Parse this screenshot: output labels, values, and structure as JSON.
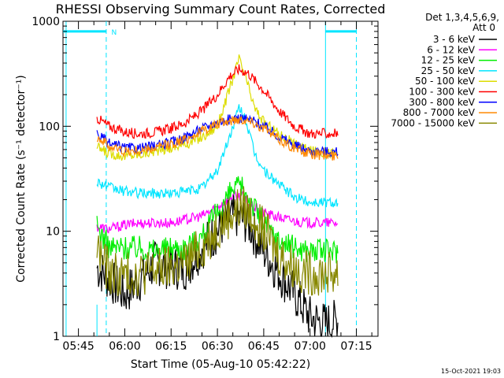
{
  "chart_data": {
    "type": "line",
    "title": "RHESSI Observing Summary Count Rates, Corrected",
    "xlabel": "Start Time (05-Aug-10 05:42:22)",
    "ylabel": "Corrected Count Rate (s⁻¹ detector⁻¹)",
    "ylog": true,
    "ylim": [
      1,
      1000
    ],
    "yticks": [
      "1",
      "10",
      "100",
      "1000"
    ],
    "xlim": [
      "05:40",
      "07:22"
    ],
    "xticks": [
      "05:45",
      "06:00",
      "06:15",
      "06:30",
      "06:45",
      "07:00",
      "07:15"
    ],
    "legend_position": "right",
    "legend_header": [
      "Det 1,3,4,5,6,9,",
      "Att 0"
    ],
    "footer_date": "15-Oct-2021 19:03",
    "flags": {
      "label": "N",
      "color": "#00e5ff",
      "flag_level": 800,
      "night_periods": [
        [
          "05:40",
          "05:54"
        ],
        [
          "07:05",
          "07:15"
        ]
      ],
      "saa_markers": [
        "05:41",
        "07:05"
      ],
      "data_gap": [
        "05:42",
        "05:51"
      ]
    },
    "series": [
      {
        "name": "3 - 6 keV",
        "color": "#000000",
        "points": [
          [
            "05:51",
            4.5
          ],
          [
            "05:55",
            3.5
          ],
          [
            "06:00",
            2.5
          ],
          [
            "06:05",
            3.5
          ],
          [
            "06:10",
            5
          ],
          [
            "06:15",
            4.5
          ],
          [
            "06:20",
            4.5
          ],
          [
            "06:25",
            7
          ],
          [
            "06:30",
            10
          ],
          [
            "06:33",
            13
          ],
          [
            "06:36",
            14
          ],
          [
            "06:40",
            12
          ],
          [
            "06:45",
            6.5
          ],
          [
            "06:50",
            4
          ],
          [
            "06:55",
            2.5
          ],
          [
            "07:00",
            1.5
          ],
          [
            "07:05",
            1.3
          ],
          [
            "07:09",
            1.4
          ]
        ]
      },
      {
        "name": "6 - 12 keV",
        "color": "#ff00ff",
        "points": [
          [
            "05:51",
            11
          ],
          [
            "05:55",
            10.5
          ],
          [
            "06:00",
            11.5
          ],
          [
            "06:05",
            12
          ],
          [
            "06:10",
            12
          ],
          [
            "06:15",
            12
          ],
          [
            "06:20",
            13
          ],
          [
            "06:25",
            14
          ],
          [
            "06:30",
            17
          ],
          [
            "06:35",
            22
          ],
          [
            "06:38",
            22
          ],
          [
            "06:40",
            18
          ],
          [
            "06:45",
            15
          ],
          [
            "06:50",
            13.5
          ],
          [
            "06:55",
            12.5
          ],
          [
            "07:00",
            12
          ],
          [
            "07:09",
            12
          ]
        ]
      },
      {
        "name": "12 - 25 keV",
        "color": "#00ee00",
        "points": [
          [
            "05:51",
            11
          ],
          [
            "05:55",
            7
          ],
          [
            "06:00",
            7
          ],
          [
            "06:05",
            7
          ],
          [
            "06:10",
            6.5
          ],
          [
            "06:15",
            7
          ],
          [
            "06:20",
            7
          ],
          [
            "06:25",
            9
          ],
          [
            "06:30",
            15
          ],
          [
            "06:35",
            25
          ],
          [
            "06:38",
            26
          ],
          [
            "06:40",
            21
          ],
          [
            "06:45",
            12
          ],
          [
            "06:50",
            8
          ],
          [
            "06:55",
            7
          ],
          [
            "07:00",
            6.5
          ],
          [
            "07:09",
            6.5
          ]
        ]
      },
      {
        "name": "25 - 50 keV",
        "color": "#00e5ff",
        "points": [
          [
            "05:51",
            30
          ],
          [
            "05:55",
            26
          ],
          [
            "06:00",
            24
          ],
          [
            "06:05",
            23
          ],
          [
            "06:10",
            23
          ],
          [
            "06:15",
            23
          ],
          [
            "06:20",
            24
          ],
          [
            "06:25",
            26
          ],
          [
            "06:30",
            38
          ],
          [
            "06:34",
            80
          ],
          [
            "06:37",
            150
          ],
          [
            "06:39",
            120
          ],
          [
            "06:42",
            55
          ],
          [
            "06:45",
            38
          ],
          [
            "06:50",
            28
          ],
          [
            "06:55",
            21
          ],
          [
            "07:00",
            19
          ],
          [
            "07:09",
            19
          ]
        ]
      },
      {
        "name": "50 - 100 keV",
        "color": "#dddd00",
        "points": [
          [
            "05:51",
            63
          ],
          [
            "05:55",
            55
          ],
          [
            "06:00",
            52
          ],
          [
            "06:05",
            54
          ],
          [
            "06:10",
            58
          ],
          [
            "06:15",
            62
          ],
          [
            "06:20",
            68
          ],
          [
            "06:25",
            78
          ],
          [
            "06:30",
            100
          ],
          [
            "06:34",
            230
          ],
          [
            "06:37",
            440
          ],
          [
            "06:39",
            300
          ],
          [
            "06:42",
            150
          ],
          [
            "06:45",
            110
          ],
          [
            "06:50",
            85
          ],
          [
            "06:55",
            68
          ],
          [
            "07:00",
            58
          ],
          [
            "07:09",
            55
          ]
        ]
      },
      {
        "name": "100 - 300 keV",
        "color": "#ff0000",
        "points": [
          [
            "05:51",
            120
          ],
          [
            "05:55",
            100
          ],
          [
            "06:00",
            88
          ],
          [
            "06:05",
            85
          ],
          [
            "06:10",
            88
          ],
          [
            "06:15",
            95
          ],
          [
            "06:20",
            110
          ],
          [
            "06:25",
            140
          ],
          [
            "06:30",
            200
          ],
          [
            "06:34",
            300
          ],
          [
            "06:37",
            350
          ],
          [
            "06:40",
            320
          ],
          [
            "06:45",
            220
          ],
          [
            "06:50",
            140
          ],
          [
            "06:55",
            100
          ],
          [
            "07:00",
            85
          ],
          [
            "07:09",
            85
          ]
        ]
      },
      {
        "name": "300 - 800 keV",
        "color": "#0000ff",
        "points": [
          [
            "05:51",
            85
          ],
          [
            "05:55",
            68
          ],
          [
            "06:00",
            62
          ],
          [
            "06:05",
            62
          ],
          [
            "06:10",
            65
          ],
          [
            "06:15",
            70
          ],
          [
            "06:20",
            80
          ],
          [
            "06:25",
            95
          ],
          [
            "06:30",
            110
          ],
          [
            "06:35",
            118
          ],
          [
            "06:38",
            120
          ],
          [
            "06:42",
            112
          ],
          [
            "06:45",
            100
          ],
          [
            "06:50",
            80
          ],
          [
            "06:55",
            66
          ],
          [
            "07:00",
            58
          ],
          [
            "07:09",
            57
          ]
        ]
      },
      {
        "name": "800 - 7000 keV",
        "color": "#ff8800",
        "points": [
          [
            "05:51",
            80
          ],
          [
            "05:55",
            64
          ],
          [
            "06:00",
            58
          ],
          [
            "06:05",
            58
          ],
          [
            "06:10",
            62
          ],
          [
            "06:15",
            68
          ],
          [
            "06:20",
            76
          ],
          [
            "06:25",
            90
          ],
          [
            "06:30",
            105
          ],
          [
            "06:35",
            115
          ],
          [
            "06:38",
            118
          ],
          [
            "06:42",
            108
          ],
          [
            "06:45",
            95
          ],
          [
            "06:50",
            75
          ],
          [
            "06:55",
            62
          ],
          [
            "07:00",
            54
          ],
          [
            "07:09",
            52
          ]
        ]
      },
      {
        "name": "7000 - 15000 keV",
        "color": "#888800",
        "points": [
          [
            "05:51",
            7
          ],
          [
            "05:55",
            4
          ],
          [
            "06:00",
            3.8
          ],
          [
            "06:05",
            4
          ],
          [
            "06:10",
            4.2
          ],
          [
            "06:15",
            4.5
          ],
          [
            "06:20",
            5
          ],
          [
            "06:25",
            7
          ],
          [
            "06:30",
            11
          ],
          [
            "06:35",
            15
          ],
          [
            "06:38",
            17
          ],
          [
            "06:42",
            14
          ],
          [
            "06:45",
            10
          ],
          [
            "06:50",
            6
          ],
          [
            "06:55",
            4.5
          ],
          [
            "07:00",
            4
          ],
          [
            "07:09",
            4
          ]
        ]
      }
    ]
  }
}
